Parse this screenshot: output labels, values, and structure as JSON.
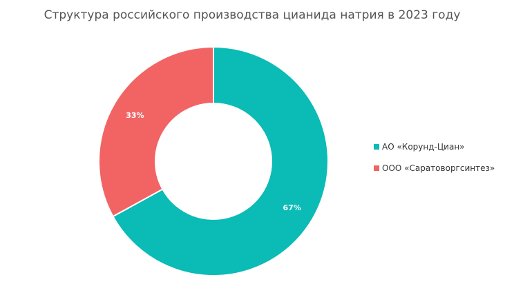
{
  "chart_data": {
    "type": "pie",
    "variant": "donut",
    "title": "Структура российского производства цианида натрия в 2023 году",
    "legend_position": "right",
    "series": [
      {
        "name": "АО «Корунд-Циан»",
        "value": 67,
        "label": "67%",
        "color": "#0bbbb5"
      },
      {
        "name": "ООО «Саратоворгсинтез»",
        "value": 33,
        "label": "33%",
        "color": "#f26464"
      }
    ]
  }
}
